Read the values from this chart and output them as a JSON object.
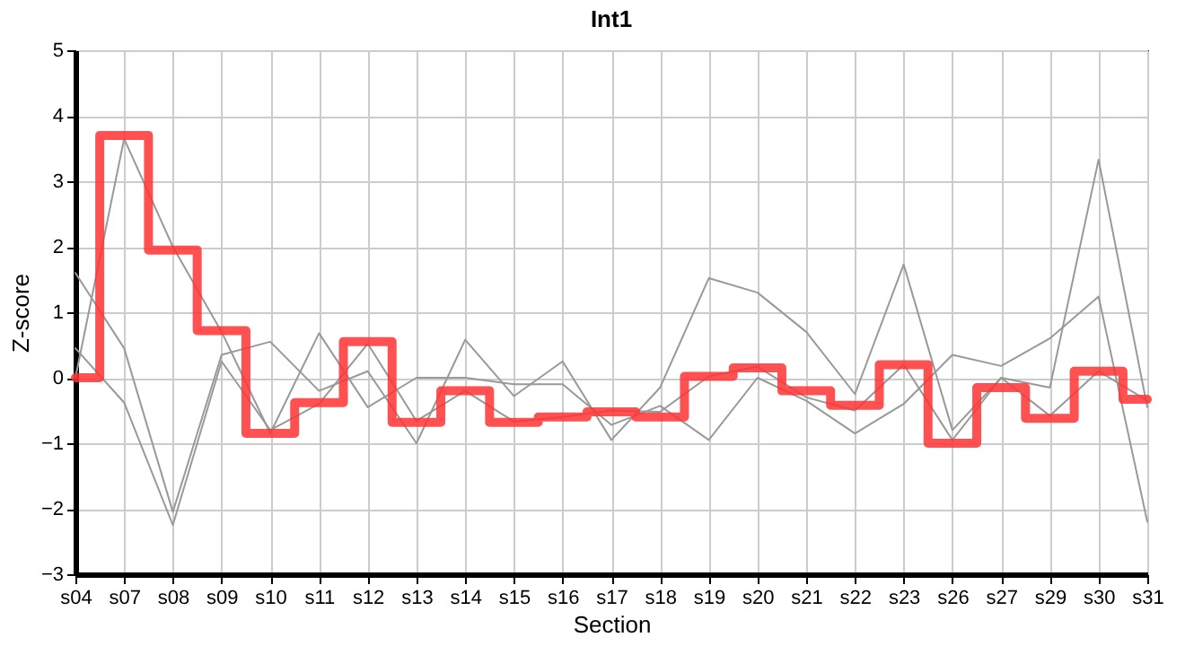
{
  "chart_data": {
    "type": "line",
    "title": "Int1",
    "xlabel": "Section",
    "ylabel": "Z-score",
    "categories": [
      "s04",
      "s07",
      "s08",
      "s09",
      "s10",
      "s11",
      "s12",
      "s13",
      "s14",
      "s15",
      "s16",
      "s17",
      "s18",
      "s19",
      "s20",
      "s21",
      "s22",
      "s23",
      "s26",
      "s27",
      "s29",
      "s30",
      "s31"
    ],
    "series": [
      {
        "color": "#999999",
        "values": [
          1.6,
          0.45,
          -2.05,
          0.35,
          0.55,
          -0.2,
          0.1,
          -1.0,
          0.58,
          -0.28,
          0.25,
          -0.95,
          -0.15,
          1.52,
          1.3,
          0.7,
          -0.25,
          1.73,
          -0.8,
          0.0,
          -0.15,
          3.33,
          -0.45
        ]
      },
      {
        "color": "#999999",
        "values": [
          0,
          3.65,
          2.0,
          0.7,
          -0.85,
          0.68,
          -0.45,
          0.0,
          0.0,
          -0.1,
          -0.1,
          -0.72,
          -0.43,
          -0.95,
          0.0,
          -0.35,
          -0.85,
          -0.4,
          0.35,
          0.18,
          0.6,
          1.24,
          -2.2
        ]
      },
      {
        "color": "#999999",
        "values": [
          0.45,
          -0.38,
          -2.25,
          0.25,
          -0.8,
          -0.4,
          0.52,
          -0.66,
          -0.2,
          -0.67,
          -0.6,
          -0.5,
          -0.52,
          0.02,
          0.17,
          -0.3,
          -0.5,
          0.2,
          -0.95,
          0.0,
          -0.58,
          0.1,
          -0.35
        ]
      },
      {
        "type": "step",
        "color": "#ff3333",
        "values": [
          0,
          3.7,
          1.95,
          0.72,
          -0.85,
          -0.38,
          0.55,
          -0.68,
          -0.2,
          -0.68,
          -0.6,
          -0.52,
          -0.6,
          0.02,
          0.15,
          -0.2,
          -0.42,
          0.2,
          -1.0,
          -0.15,
          -0.62,
          0.1,
          -0.33
        ]
      }
    ],
    "ylim": [
      -3,
      5
    ],
    "yticks": [
      -3,
      -2,
      -1,
      0,
      1,
      2,
      3,
      4,
      5
    ],
    "grid": true
  }
}
